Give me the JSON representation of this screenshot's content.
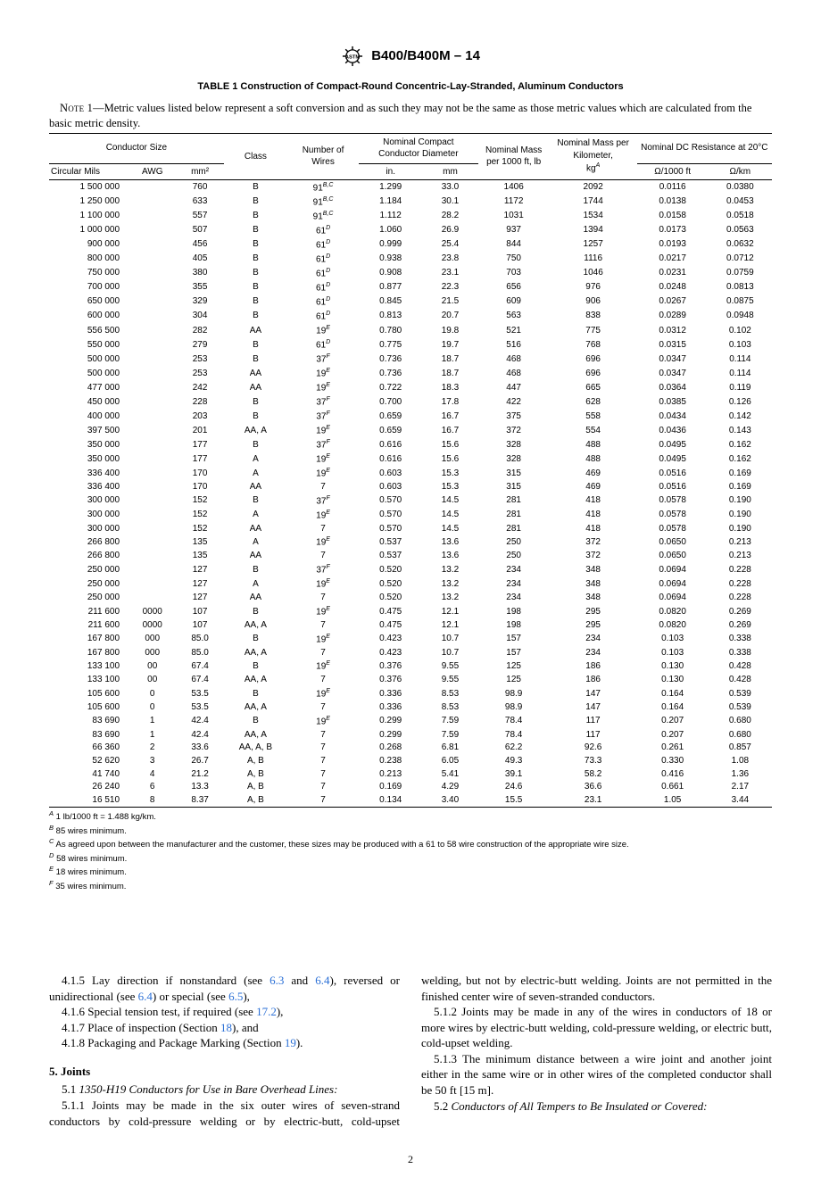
{
  "header": {
    "designation": "B400/B400M – 14"
  },
  "table": {
    "title": "TABLE 1 Construction of Compact-Round Concentric-Lay-Stranded, Aluminum Conductors",
    "note_label": "Note 1",
    "note_text": "—Metric values listed below represent a soft conversion and as such they may not be the same as those metric values which are calculated from the basic metric density.",
    "head": {
      "conductor_size": "Conductor Size",
      "class": "Class",
      "num_wires": "Number of Wires",
      "nom_diam": "Nominal Compact Conductor Diameter",
      "nom_mass_ft": "Nominal Mass per 1000 ft, lb",
      "nom_mass_km_line1": "Nominal Mass per Kilometer,",
      "nom_mass_km_unit": "kg",
      "nom_mass_km_fn": "A",
      "nom_dc": "Nominal DC Resistance at 20°C",
      "sub_cm": "Circular Mils",
      "sub_awg": "AWG",
      "sub_mm2": "mm²",
      "sub_in": "in.",
      "sub_mm": "mm",
      "sub_oft": "Ω/1000 ft",
      "sub_okm": "Ω/km"
    },
    "rows": [
      {
        "cm": "1 500 000",
        "awg": "",
        "mm2": "760",
        "cls": "B",
        "nw": "91",
        "fn": "B,C",
        "din": "1.299",
        "dmm": "33.0",
        "mft": "1406",
        "mkm": "2092",
        "oft": "0.0116",
        "okm": "0.0380"
      },
      {
        "cm": "1 250 000",
        "awg": "",
        "mm2": "633",
        "cls": "B",
        "nw": "91",
        "fn": "B,C",
        "din": "1.184",
        "dmm": "30.1",
        "mft": "1172",
        "mkm": "1744",
        "oft": "0.0138",
        "okm": "0.0453"
      },
      {
        "cm": "1 100 000",
        "awg": "",
        "mm2": "557",
        "cls": "B",
        "nw": "91",
        "fn": "B,C",
        "din": "1.112",
        "dmm": "28.2",
        "mft": "1031",
        "mkm": "1534",
        "oft": "0.0158",
        "okm": "0.0518"
      },
      {
        "cm": "1 000 000",
        "awg": "",
        "mm2": "507",
        "cls": "B",
        "nw": "61",
        "fn": "D",
        "din": "1.060",
        "dmm": "26.9",
        "mft": "937",
        "mkm": "1394",
        "oft": "0.0173",
        "okm": "0.0563"
      },
      {
        "cm": "900 000",
        "awg": "",
        "mm2": "456",
        "cls": "B",
        "nw": "61",
        "fn": "D",
        "din": "0.999",
        "dmm": "25.4",
        "mft": "844",
        "mkm": "1257",
        "oft": "0.0193",
        "okm": "0.0632"
      },
      {
        "cm": "800 000",
        "awg": "",
        "mm2": "405",
        "cls": "B",
        "nw": "61",
        "fn": "D",
        "din": "0.938",
        "dmm": "23.8",
        "mft": "750",
        "mkm": "1116",
        "oft": "0.0217",
        "okm": "0.0712"
      },
      {
        "cm": "750 000",
        "awg": "",
        "mm2": "380",
        "cls": "B",
        "nw": "61",
        "fn": "D",
        "din": "0.908",
        "dmm": "23.1",
        "mft": "703",
        "mkm": "1046",
        "oft": "0.0231",
        "okm": "0.0759"
      },
      {
        "cm": "700 000",
        "awg": "",
        "mm2": "355",
        "cls": "B",
        "nw": "61",
        "fn": "D",
        "din": "0.877",
        "dmm": "22.3",
        "mft": "656",
        "mkm": "976",
        "oft": "0.0248",
        "okm": "0.0813"
      },
      {
        "cm": "650 000",
        "awg": "",
        "mm2": "329",
        "cls": "B",
        "nw": "61",
        "fn": "D",
        "din": "0.845",
        "dmm": "21.5",
        "mft": "609",
        "mkm": "906",
        "oft": "0.0267",
        "okm": "0.0875"
      },
      {
        "cm": "600 000",
        "awg": "",
        "mm2": "304",
        "cls": "B",
        "nw": "61",
        "fn": "D",
        "din": "0.813",
        "dmm": "20.7",
        "mft": "563",
        "mkm": "838",
        "oft": "0.0289",
        "okm": "0.0948"
      },
      {
        "cm": "556 500",
        "awg": "",
        "mm2": "282",
        "cls": "AA",
        "nw": "19",
        "fn": "E",
        "din": "0.780",
        "dmm": "19.8",
        "mft": "521",
        "mkm": "775",
        "oft": "0.0312",
        "okm": "0.102"
      },
      {
        "cm": "550 000",
        "awg": "",
        "mm2": "279",
        "cls": "B",
        "nw": "61",
        "fn": "D",
        "din": "0.775",
        "dmm": "19.7",
        "mft": "516",
        "mkm": "768",
        "oft": "0.0315",
        "okm": "0.103"
      },
      {
        "cm": "500 000",
        "awg": "",
        "mm2": "253",
        "cls": "B",
        "nw": "37",
        "fn": "F",
        "din": "0.736",
        "dmm": "18.7",
        "mft": "468",
        "mkm": "696",
        "oft": "0.0347",
        "okm": "0.114"
      },
      {
        "cm": "500 000",
        "awg": "",
        "mm2": "253",
        "cls": "AA",
        "nw": "19",
        "fn": "E",
        "din": "0.736",
        "dmm": "18.7",
        "mft": "468",
        "mkm": "696",
        "oft": "0.0347",
        "okm": "0.114"
      },
      {
        "cm": "477 000",
        "awg": "",
        "mm2": "242",
        "cls": "AA",
        "nw": "19",
        "fn": "E",
        "din": "0.722",
        "dmm": "18.3",
        "mft": "447",
        "mkm": "665",
        "oft": "0.0364",
        "okm": "0.119"
      },
      {
        "cm": "450 000",
        "awg": "",
        "mm2": "228",
        "cls": "B",
        "nw": "37",
        "fn": "F",
        "din": "0.700",
        "dmm": "17.8",
        "mft": "422",
        "mkm": "628",
        "oft": "0.0385",
        "okm": "0.126"
      },
      {
        "cm": "400 000",
        "awg": "",
        "mm2": "203",
        "cls": "B",
        "nw": "37",
        "fn": "F",
        "din": "0.659",
        "dmm": "16.7",
        "mft": "375",
        "mkm": "558",
        "oft": "0.0434",
        "okm": "0.142"
      },
      {
        "cm": "397 500",
        "awg": "",
        "mm2": "201",
        "cls": "AA, A",
        "nw": "19",
        "fn": "E",
        "din": "0.659",
        "dmm": "16.7",
        "mft": "372",
        "mkm": "554",
        "oft": "0.0436",
        "okm": "0.143"
      },
      {
        "cm": "350 000",
        "awg": "",
        "mm2": "177",
        "cls": "B",
        "nw": "37",
        "fn": "F",
        "din": "0.616",
        "dmm": "15.6",
        "mft": "328",
        "mkm": "488",
        "oft": "0.0495",
        "okm": "0.162"
      },
      {
        "cm": "350 000",
        "awg": "",
        "mm2": "177",
        "cls": "A",
        "nw": "19",
        "fn": "E",
        "din": "0.616",
        "dmm": "15.6",
        "mft": "328",
        "mkm": "488",
        "oft": "0.0495",
        "okm": "0.162"
      },
      {
        "cm": "336 400",
        "awg": "",
        "mm2": "170",
        "cls": "A",
        "nw": "19",
        "fn": "E",
        "din": "0.603",
        "dmm": "15.3",
        "mft": "315",
        "mkm": "469",
        "oft": "0.0516",
        "okm": "0.169"
      },
      {
        "cm": "336 400",
        "awg": "",
        "mm2": "170",
        "cls": "AA",
        "nw": "7",
        "fn": "",
        "din": "0.603",
        "dmm": "15.3",
        "mft": "315",
        "mkm": "469",
        "oft": "0.0516",
        "okm": "0.169"
      },
      {
        "cm": "300 000",
        "awg": "",
        "mm2": "152",
        "cls": "B",
        "nw": "37",
        "fn": "F",
        "din": "0.570",
        "dmm": "14.5",
        "mft": "281",
        "mkm": "418",
        "oft": "0.0578",
        "okm": "0.190"
      },
      {
        "cm": "300 000",
        "awg": "",
        "mm2": "152",
        "cls": "A",
        "nw": "19",
        "fn": "E",
        "din": "0.570",
        "dmm": "14.5",
        "mft": "281",
        "mkm": "418",
        "oft": "0.0578",
        "okm": "0.190"
      },
      {
        "cm": "300 000",
        "awg": "",
        "mm2": "152",
        "cls": "AA",
        "nw": "7",
        "fn": "",
        "din": "0.570",
        "dmm": "14.5",
        "mft": "281",
        "mkm": "418",
        "oft": "0.0578",
        "okm": "0.190"
      },
      {
        "cm": "266 800",
        "awg": "",
        "mm2": "135",
        "cls": "A",
        "nw": "19",
        "fn": "E",
        "din": "0.537",
        "dmm": "13.6",
        "mft": "250",
        "mkm": "372",
        "oft": "0.0650",
        "okm": "0.213"
      },
      {
        "cm": "266 800",
        "awg": "",
        "mm2": "135",
        "cls": "AA",
        "nw": "7",
        "fn": "",
        "din": "0.537",
        "dmm": "13.6",
        "mft": "250",
        "mkm": "372",
        "oft": "0.0650",
        "okm": "0.213"
      },
      {
        "cm": "250 000",
        "awg": "",
        "mm2": "127",
        "cls": "B",
        "nw": "37",
        "fn": "F",
        "din": "0.520",
        "dmm": "13.2",
        "mft": "234",
        "mkm": "348",
        "oft": "0.0694",
        "okm": "0.228"
      },
      {
        "cm": "250 000",
        "awg": "",
        "mm2": "127",
        "cls": "A",
        "nw": "19",
        "fn": "E",
        "din": "0.520",
        "dmm": "13.2",
        "mft": "234",
        "mkm": "348",
        "oft": "0.0694",
        "okm": "0.228"
      },
      {
        "cm": "250 000",
        "awg": "",
        "mm2": "127",
        "cls": "AA",
        "nw": "7",
        "fn": "",
        "din": "0.520",
        "dmm": "13.2",
        "mft": "234",
        "mkm": "348",
        "oft": "0.0694",
        "okm": "0.228"
      },
      {
        "cm": "211 600",
        "awg": "0000",
        "mm2": "107",
        "cls": "B",
        "nw": "19",
        "fn": "E",
        "din": "0.475",
        "dmm": "12.1",
        "mft": "198",
        "mkm": "295",
        "oft": "0.0820",
        "okm": "0.269"
      },
      {
        "cm": "211 600",
        "awg": "0000",
        "mm2": "107",
        "cls": "AA, A",
        "nw": "7",
        "fn": "",
        "din": "0.475",
        "dmm": "12.1",
        "mft": "198",
        "mkm": "295",
        "oft": "0.0820",
        "okm": "0.269"
      },
      {
        "cm": "167 800",
        "awg": "000",
        "mm2": "85.0",
        "cls": "B",
        "nw": "19",
        "fn": "E",
        "din": "0.423",
        "dmm": "10.7",
        "mft": "157",
        "mkm": "234",
        "oft": "0.103",
        "okm": "0.338"
      },
      {
        "cm": "167 800",
        "awg": "000",
        "mm2": "85.0",
        "cls": "AA, A",
        "nw": "7",
        "fn": "",
        "din": "0.423",
        "dmm": "10.7",
        "mft": "157",
        "mkm": "234",
        "oft": "0.103",
        "okm": "0.338"
      },
      {
        "cm": "133 100",
        "awg": "00",
        "mm2": "67.4",
        "cls": "B",
        "nw": "19",
        "fn": "E",
        "din": "0.376",
        "dmm": "9.55",
        "mft": "125",
        "mkm": "186",
        "oft": "0.130",
        "okm": "0.428"
      },
      {
        "cm": "133 100",
        "awg": "00",
        "mm2": "67.4",
        "cls": "AA, A",
        "nw": "7",
        "fn": "",
        "din": "0.376",
        "dmm": "9.55",
        "mft": "125",
        "mkm": "186",
        "oft": "0.130",
        "okm": "0.428"
      },
      {
        "cm": "105 600",
        "awg": "0",
        "mm2": "53.5",
        "cls": "B",
        "nw": "19",
        "fn": "E",
        "din": "0.336",
        "dmm": "8.53",
        "mft": "98.9",
        "mkm": "147",
        "oft": "0.164",
        "okm": "0.539"
      },
      {
        "cm": "105 600",
        "awg": "0",
        "mm2": "53.5",
        "cls": "AA, A",
        "nw": "7",
        "fn": "",
        "din": "0.336",
        "dmm": "8.53",
        "mft": "98.9",
        "mkm": "147",
        "oft": "0.164",
        "okm": "0.539"
      },
      {
        "cm": "83 690",
        "awg": "1",
        "mm2": "42.4",
        "cls": "B",
        "nw": "19",
        "fn": "E",
        "din": "0.299",
        "dmm": "7.59",
        "mft": "78.4",
        "mkm": "117",
        "oft": "0.207",
        "okm": "0.680"
      },
      {
        "cm": "83 690",
        "awg": "1",
        "mm2": "42.4",
        "cls": "AA, A",
        "nw": "7",
        "fn": "",
        "din": "0.299",
        "dmm": "7.59",
        "mft": "78.4",
        "mkm": "117",
        "oft": "0.207",
        "okm": "0.680"
      },
      {
        "cm": "66 360",
        "awg": "2",
        "mm2": "33.6",
        "cls": "AA, A, B",
        "nw": "7",
        "fn": "",
        "din": "0.268",
        "dmm": "6.81",
        "mft": "62.2",
        "mkm": "92.6",
        "oft": "0.261",
        "okm": "0.857"
      },
      {
        "cm": "52 620",
        "awg": "3",
        "mm2": "26.7",
        "cls": "A, B",
        "nw": "7",
        "fn": "",
        "din": "0.238",
        "dmm": "6.05",
        "mft": "49.3",
        "mkm": "73.3",
        "oft": "0.330",
        "okm": "1.08"
      },
      {
        "cm": "41 740",
        "awg": "4",
        "mm2": "21.2",
        "cls": "A, B",
        "nw": "7",
        "fn": "",
        "din": "0.213",
        "dmm": "5.41",
        "mft": "39.1",
        "mkm": "58.2",
        "oft": "0.416",
        "okm": "1.36"
      },
      {
        "cm": "26 240",
        "awg": "6",
        "mm2": "13.3",
        "cls": "A, B",
        "nw": "7",
        "fn": "",
        "din": "0.169",
        "dmm": "4.29",
        "mft": "24.6",
        "mkm": "36.6",
        "oft": "0.661",
        "okm": "2.17"
      },
      {
        "cm": "16 510",
        "awg": "8",
        "mm2": "8.37",
        "cls": "A, B",
        "nw": "7",
        "fn": "",
        "din": "0.134",
        "dmm": "3.40",
        "mft": "15.5",
        "mkm": "23.1",
        "oft": "1.05",
        "okm": "3.44"
      }
    ],
    "footnotes": {
      "A": "1 lb/1000 ft = 1.488 kg/km.",
      "B": "85 wires minimum.",
      "C": "As agreed upon between the manufacturer and the customer, these sizes may be produced with a 61 to 58 wire construction of the appropriate wire size.",
      "D": "58 wires minimum.",
      "E": "18 wires minimum.",
      "F": "35 wires minimum."
    }
  },
  "body": {
    "p415a": "4.1.5 Lay direction if nonstandard (see ",
    "p415_r1": "6.3",
    "p415b": " and ",
    "p415_r2": "6.4",
    "p415c": "), reversed or unidirectional (see ",
    "p415_r3": "6.4",
    "p415d": ") or special (see ",
    "p415_r4": "6.5",
    "p415e": "),",
    "p416a": "4.1.6 Special tension test, if required (see ",
    "p416_r1": "17.2",
    "p416b": "),",
    "p417a": "4.1.7 Place of inspection (Section ",
    "p417_r1": "18",
    "p417b": "), and",
    "p418a": "4.1.8 Packaging and Package Marking (Section ",
    "p418_r1": "19",
    "p418b": ").",
    "sec5": "5.  Joints",
    "p51": "5.1 1350-H19 Conductors for Use in Bare Overhead Lines:",
    "p511": "5.1.1 Joints may be made in the six outer wires of seven-strand conductors by cold-pressure welding or by electric-butt, cold-upset welding, but not by electric-butt welding. Joints are not permitted in the finished center wire of seven-stranded conductors.",
    "p512": "5.1.2 Joints may be made in any of the wires in conductors of 18 or more wires by electric-butt welding, cold-pressure welding, or electric butt, cold-upset welding.",
    "p513": "5.1.3 The minimum distance between a wire joint and another joint either in the same wire or in other wires of the completed conductor shall be 50 ft [15 m].",
    "p52": "5.2 Conductors of All Tempers to Be Insulated or Covered:"
  },
  "page_number": "2"
}
